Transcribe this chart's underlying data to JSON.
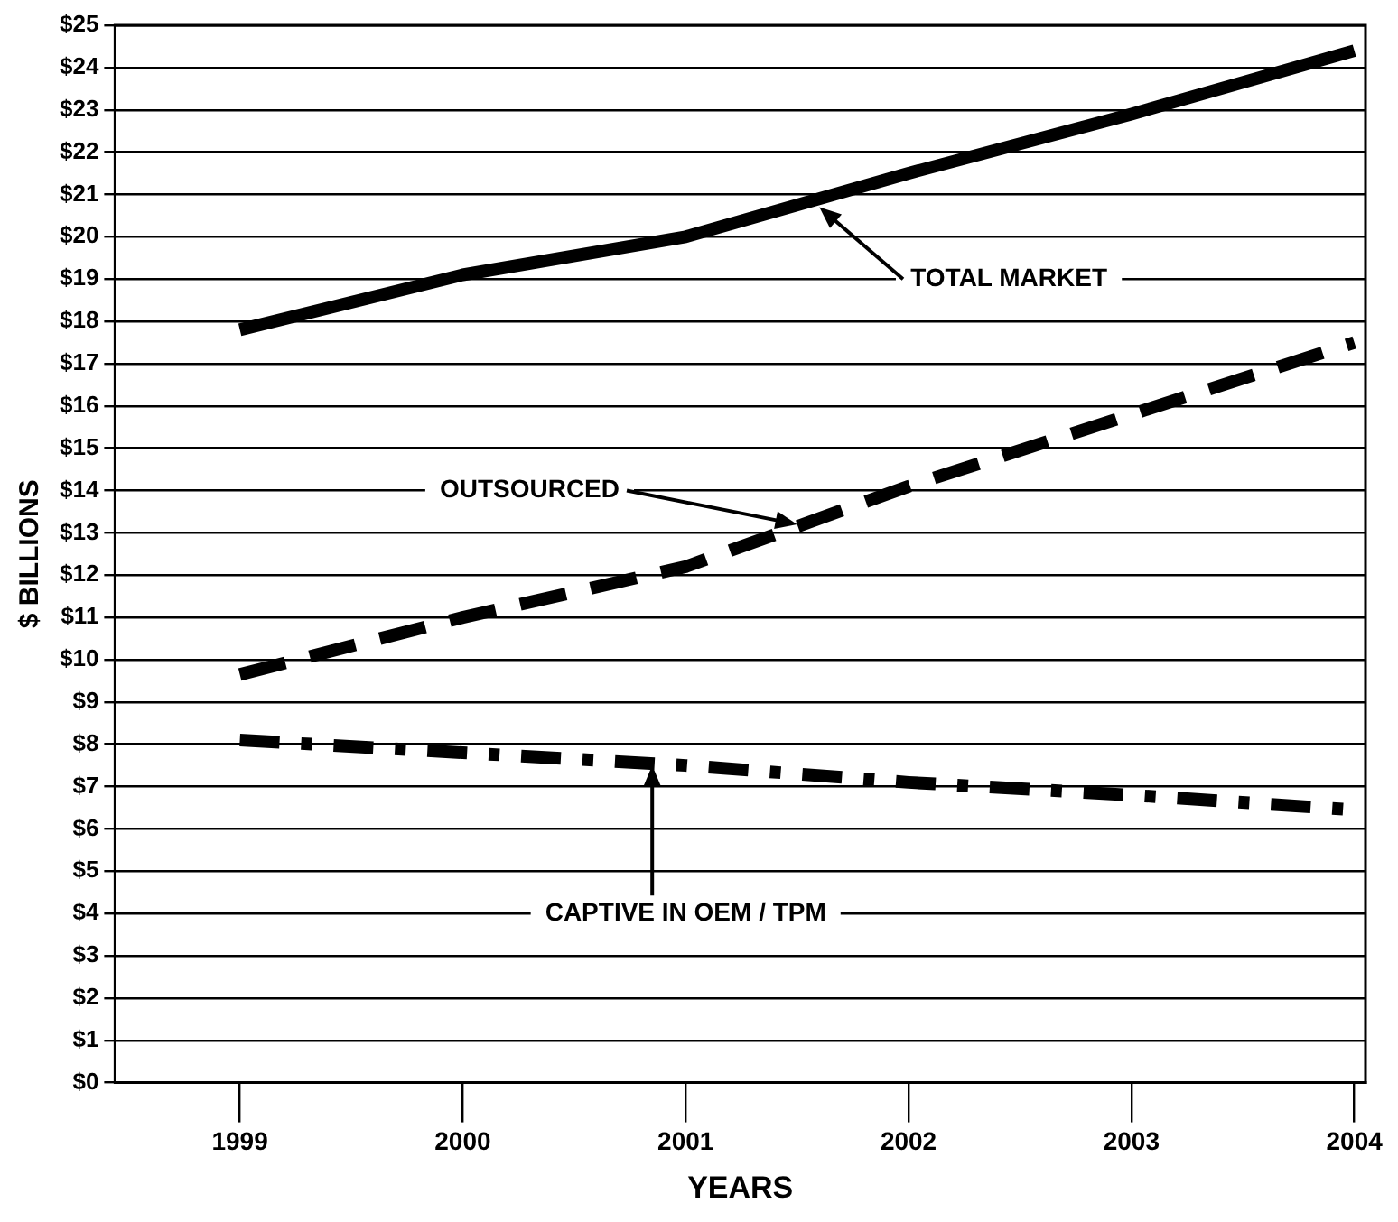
{
  "chart_data": {
    "type": "line",
    "xlabel": "YEARS",
    "ylabel": "$ BILLIONS",
    "x": [
      1999,
      2000,
      2001,
      2002,
      2003,
      2004
    ],
    "series": [
      {
        "color": "#000000",
        "line_style": "solid",
        "values": [
          17.8,
          19.1,
          20.0,
          21.5,
          22.9,
          24.4
        ]
      },
      {
        "color": "#000000",
        "line_style": "dashed",
        "values": [
          9.65,
          11.0,
          12.2,
          14.1,
          15.8,
          17.5
        ]
      },
      {
        "color": "#000000",
        "line_style": "dashdot",
        "values": [
          8.1,
          7.8,
          7.5,
          7.1,
          6.8,
          6.45
        ]
      }
    ],
    "xlim": [
      1998.44,
      2004.05
    ],
    "xticks": [
      1999,
      2000,
      2001,
      2002,
      2003,
      2004
    ],
    "ylim": [
      0,
      25
    ],
    "yticks": [
      {
        "value": 0,
        "label": "$0"
      },
      {
        "value": 1,
        "label": "$1"
      },
      {
        "value": 2,
        "label": "$2"
      },
      {
        "value": 3,
        "label": "$3"
      },
      {
        "value": 4,
        "label": "$4"
      },
      {
        "value": 5,
        "label": "$5"
      },
      {
        "value": 6,
        "label": "$6"
      },
      {
        "value": 7,
        "label": "$7"
      },
      {
        "value": 8,
        "label": "$8"
      },
      {
        "value": 9,
        "label": "$9"
      },
      {
        "value": 10,
        "label": "$10"
      },
      {
        "value": 11,
        "label": "$11"
      },
      {
        "value": 12,
        "label": "$12"
      },
      {
        "value": 13,
        "label": "$13"
      },
      {
        "value": 14,
        "label": "$14"
      },
      {
        "value": 15,
        "label": "$15"
      },
      {
        "value": 16,
        "label": "$16"
      },
      {
        "value": 17,
        "label": "$17"
      },
      {
        "value": 18,
        "label": "$18"
      },
      {
        "value": 19,
        "label": "$19"
      },
      {
        "value": 20,
        "label": "$20"
      },
      {
        "value": 21,
        "label": "$21"
      },
      {
        "value": 22,
        "label": "$22"
      },
      {
        "value": 23,
        "label": "$23"
      },
      {
        "value": 24,
        "label": "$24"
      },
      {
        "value": 25,
        "label": "$25"
      }
    ],
    "grid": "y",
    "legend": false,
    "marker": "none",
    "annotations": [
      {
        "text": "TOTAL MARKET",
        "x": 2001.6,
        "y": 20.7
      },
      {
        "text": "OUTSOURCED",
        "x": 2001.5,
        "y": 13.2
      },
      {
        "text": "CAPTIVE IN OEM / TPM",
        "x": 2000.85,
        "y": 7.5
      }
    ]
  }
}
